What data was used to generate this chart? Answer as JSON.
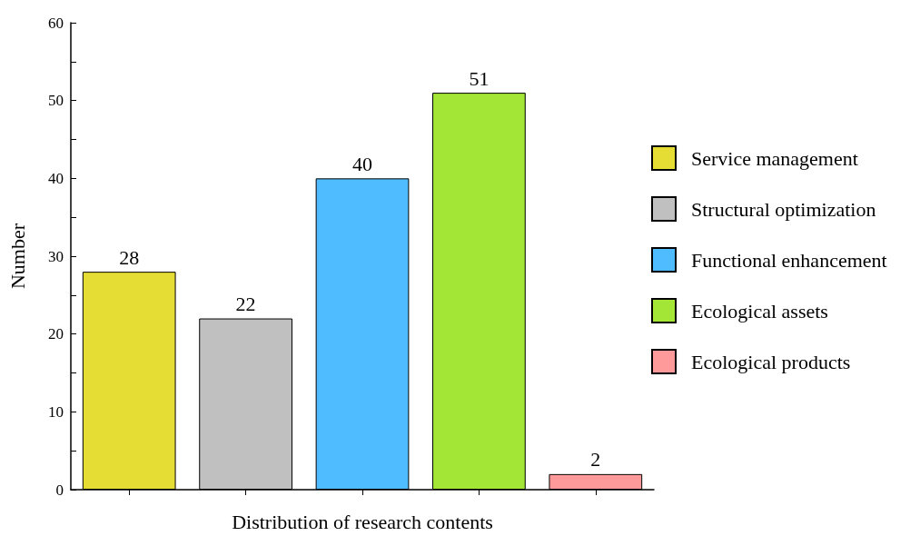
{
  "chart_data": {
    "type": "bar",
    "xlabel": "Distribution of research contents",
    "ylabel": "Number",
    "categories": [
      null,
      null,
      null,
      null,
      null
    ],
    "series": [
      {
        "name": "Service management",
        "color": "#e5dc34",
        "values": [
          28,
          null,
          null,
          null,
          null
        ]
      },
      {
        "name": "Structural optimization",
        "color": "#c0c0c0",
        "values": [
          null,
          22,
          null,
          null,
          null
        ]
      },
      {
        "name": "Functional enhancement",
        "color": "#4fbcff",
        "values": [
          null,
          null,
          40,
          null,
          null
        ]
      },
      {
        "name": "Ecological assets",
        "color": "#a3e635",
        "values": [
          null,
          null,
          null,
          51,
          null
        ]
      },
      {
        "name": "Ecological products",
        "color": "#fe9a9a",
        "values": [
          null,
          null,
          null,
          null,
          2
        ]
      }
    ],
    "ylim": [
      0,
      60
    ],
    "yticks": [
      0,
      {
        "value": 5,
        "label": null
      },
      10,
      {
        "value": 15,
        "label": null
      },
      20,
      {
        "value": 25,
        "label": null
      },
      30,
      {
        "value": 35,
        "label": null
      },
      40,
      {
        "value": 45,
        "label": null
      },
      50,
      {
        "value": 55,
        "label": null
      },
      60
    ],
    "data_labels": true,
    "grid": false,
    "legend": "right"
  }
}
